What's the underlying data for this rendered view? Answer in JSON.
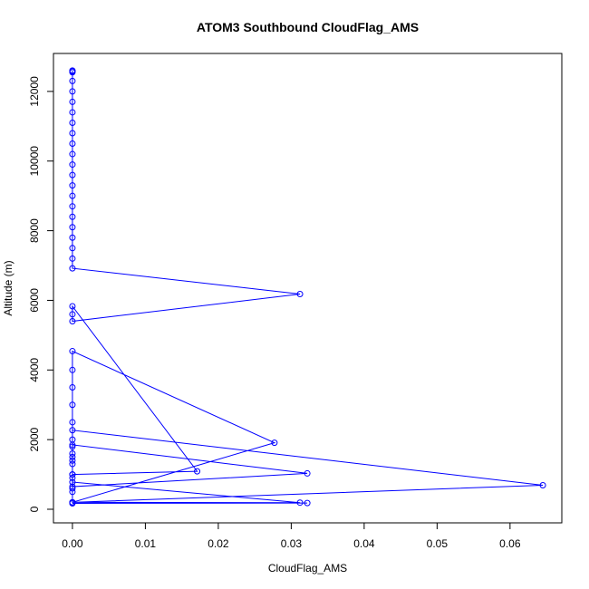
{
  "chart_data": {
    "type": "line",
    "title": "ATOM3 Southbound CloudFlag_AMS",
    "x_label": "CloudFlag_AMS",
    "y_label": "Altitude (m)",
    "series": [
      {
        "color": "#0000ff",
        "x": [
          0,
          0,
          0,
          0,
          0,
          0,
          0,
          0,
          0,
          0,
          0,
          0,
          0,
          0,
          0,
          0,
          0,
          0,
          0,
          0,
          0,
          0,
          0.0312,
          0,
          0,
          0,
          0.0171,
          0,
          0,
          0,
          0,
          0,
          0,
          0,
          0,
          0,
          0.0277,
          0,
          0,
          0,
          0,
          0,
          0,
          0.0645,
          0,
          0,
          0,
          0,
          0,
          0.0322,
          0,
          0,
          0.0312,
          0,
          0.0322,
          0
        ],
        "values": [
          12600,
          12580,
          12550,
          12300,
          12000,
          11700,
          11400,
          11100,
          10800,
          10500,
          10200,
          9900,
          9600,
          9300,
          9000,
          8700,
          8400,
          8100,
          7800,
          7500,
          7200,
          6920,
          6180,
          5400,
          5600,
          5830,
          1090,
          1000,
          1300,
          1600,
          2000,
          2500,
          3000,
          3500,
          4000,
          4540,
          1910,
          200,
          500,
          900,
          1400,
          1800,
          2270,
          690,
          200,
          600,
          1000,
          1500,
          1850,
          1030,
          650,
          780,
          190,
          200,
          180,
          170
        ]
      }
    ],
    "xlim": [
      -0.0026,
      0.0671
    ],
    "ylim": [
      -390,
      13090
    ],
    "xticks": [
      {
        "value": 0,
        "label": "0.00"
      },
      {
        "value": 0.01,
        "label": "0.01"
      },
      {
        "value": 0.02,
        "label": "0.02"
      },
      {
        "value": 0.03,
        "label": "0.03"
      },
      {
        "value": 0.04,
        "label": "0.04"
      },
      {
        "value": 0.05,
        "label": "0.05"
      },
      {
        "value": 0.06,
        "label": "0.06"
      }
    ],
    "yticks": [
      0,
      2000,
      4000,
      6000,
      8000,
      10000,
      12000
    ],
    "grid": false
  }
}
